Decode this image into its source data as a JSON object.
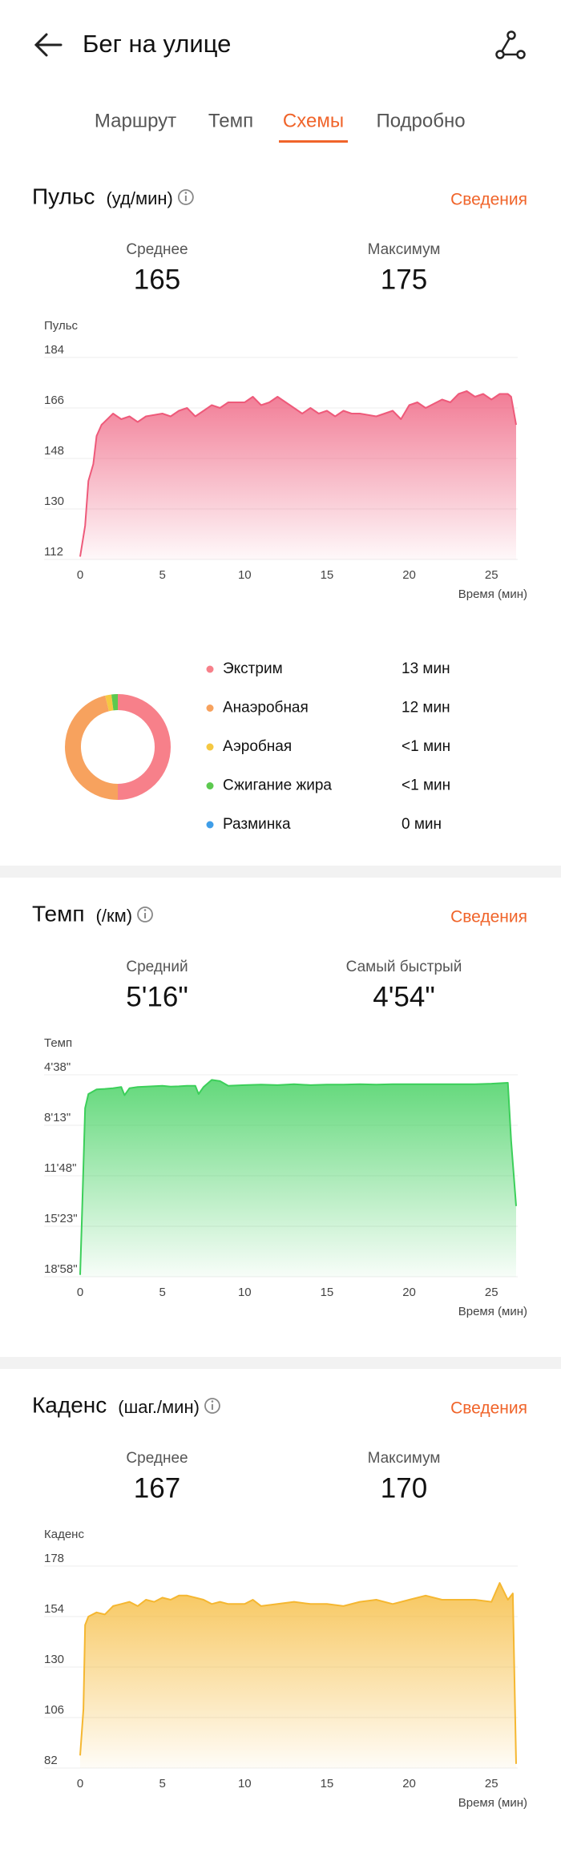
{
  "header": {
    "title": "Бег на улице"
  },
  "tabs": [
    "Маршрут",
    "Темп",
    "Схемы",
    "Подробно"
  ],
  "sections": [
    {
      "title": "Пульс",
      "unit": "(уд/мин)",
      "link": "Сведения",
      "stats": [
        {
          "label": "Среднее",
          "value": 165
        },
        {
          "label": "Максимум",
          "value": 175
        }
      ]
    },
    {
      "title": "Темп",
      "unit": "(/км)",
      "link": "Сведения",
      "stats": [
        {
          "label": "Средний",
          "value": "5'16\""
        },
        {
          "label": "Самый быстрый",
          "value": "4'54\""
        }
      ]
    },
    {
      "title": "Каденс",
      "unit": "(шаг./мин)",
      "link": "Сведения",
      "stats": [
        {
          "label": "Среднее",
          "value": 167
        },
        {
          "label": "Максимум",
          "value": 170
        }
      ]
    }
  ],
  "chart_data": [
    {
      "type": "area",
      "axis_label": "Пульс",
      "x_label": "Время (мин)",
      "x": [
        0,
        0.3,
        0.5,
        0.8,
        1,
        1.3,
        2,
        2.5,
        3,
        3.5,
        4,
        5,
        5.5,
        6,
        6.5,
        7,
        7.5,
        8,
        8.5,
        9,
        10,
        10.5,
        11,
        11.5,
        12,
        12.5,
        13,
        13.5,
        14,
        14.5,
        15,
        15.5,
        16,
        16.5,
        17,
        18,
        18.5,
        19,
        19.5,
        20,
        20.5,
        21,
        22,
        22.5,
        23,
        23.5,
        24,
        24.5,
        25,
        25.5,
        26,
        26.2,
        26.5
      ],
      "series": [
        {
          "color": "#ee5a7a",
          "values": [
            113,
            124,
            140,
            146,
            156,
            160,
            164,
            162,
            163,
            161,
            163,
            164,
            163,
            165,
            166,
            163,
            165,
            167,
            166,
            168,
            168,
            170,
            167,
            168,
            170,
            168,
            166,
            164,
            166,
            164,
            165,
            163,
            165,
            164,
            164,
            163,
            164,
            165,
            162,
            167,
            168,
            166,
            169,
            168,
            171,
            172,
            170,
            171,
            169,
            171,
            171,
            170,
            160
          ]
        }
      ],
      "xlim": [
        0,
        26.5
      ],
      "ylim": [
        112,
        184
      ],
      "xticks": [
        0,
        5,
        10,
        15,
        20,
        25
      ],
      "yticks": [
        112,
        130,
        148,
        166,
        184
      ]
    },
    {
      "type": "donut",
      "categories": [
        "Экстрим",
        "Анаэробная",
        "Аэробная",
        "Сжигание жира",
        "Разминка"
      ],
      "values": [
        13,
        12,
        0.5,
        0.5,
        0
      ],
      "value_labels": [
        "13 мин",
        "12 мин",
        "<1 мин",
        "<1 мин",
        "0 мин"
      ],
      "colors": [
        "#f7808a",
        "#f7a25e",
        "#f5c842",
        "#5cc94f",
        "#3f9ee8"
      ]
    },
    {
      "type": "area",
      "axis_label": "Темп",
      "x_label": "Время (мин)",
      "x": [
        0,
        0.1,
        0.3,
        0.5,
        1,
        1.5,
        2,
        2.5,
        2.7,
        3,
        3.5,
        4,
        5,
        5.5,
        6,
        6.5,
        7,
        7.2,
        7.5,
        8,
        8.5,
        9,
        10,
        11,
        12,
        13,
        14,
        15,
        16,
        17,
        18,
        19,
        20,
        21,
        22,
        23,
        24,
        25,
        26,
        26.2,
        26.5
      ],
      "series": [
        {
          "color": "#3ccf5a",
          "values": [
            1130,
            900,
            420,
            360,
            340,
            338,
            335,
            330,
            365,
            335,
            330,
            328,
            325,
            328,
            327,
            325,
            325,
            360,
            330,
            300,
            305,
            325,
            322,
            320,
            322,
            318,
            322,
            320,
            320,
            318,
            320,
            318,
            318,
            318,
            318,
            318,
            318,
            316,
            312,
            560,
            837
          ]
        }
      ],
      "xlim": [
        0,
        26.5
      ],
      "ylim": [
        1138,
        278
      ],
      "xticks": [
        0,
        5,
        10,
        15,
        20,
        25
      ],
      "yticks": [
        {
          "value": 278,
          "label": "4'38\""
        },
        {
          "value": 493,
          "label": "8'13\""
        },
        {
          "value": 708,
          "label": "11'48\""
        },
        {
          "value": 923,
          "label": "15'23\""
        },
        {
          "value": 1138,
          "label": "18'58\""
        }
      ]
    },
    {
      "type": "area",
      "axis_label": "Каденс",
      "x_label": "Время (мин)",
      "x": [
        0,
        0.2,
        0.3,
        0.5,
        1,
        1.5,
        2,
        2.5,
        3,
        3.5,
        4,
        4.5,
        5,
        5.5,
        6,
        6.5,
        7,
        7.5,
        8,
        8.5,
        9,
        10,
        10.5,
        11,
        12,
        13,
        14,
        15,
        16,
        17,
        18,
        19,
        20,
        21,
        22,
        23,
        24,
        25,
        25.5,
        26,
        26.3,
        26.5
      ],
      "series": [
        {
          "color": "#f5b731",
          "values": [
            88,
            110,
            150,
            154,
            156,
            155,
            159,
            160,
            161,
            159,
            162,
            161,
            163,
            162,
            164,
            164,
            163,
            162,
            160,
            161,
            160,
            160,
            162,
            159,
            160,
            161,
            160,
            160,
            159,
            161,
            162,
            160,
            162,
            164,
            162,
            162,
            162,
            161,
            170,
            162,
            165,
            84
          ]
        }
      ],
      "xlim": [
        0,
        26.5
      ],
      "ylim": [
        82,
        178
      ],
      "xticks": [
        0,
        5,
        10,
        15,
        20,
        25
      ],
      "yticks": [
        82,
        106,
        130,
        154,
        178
      ]
    }
  ]
}
